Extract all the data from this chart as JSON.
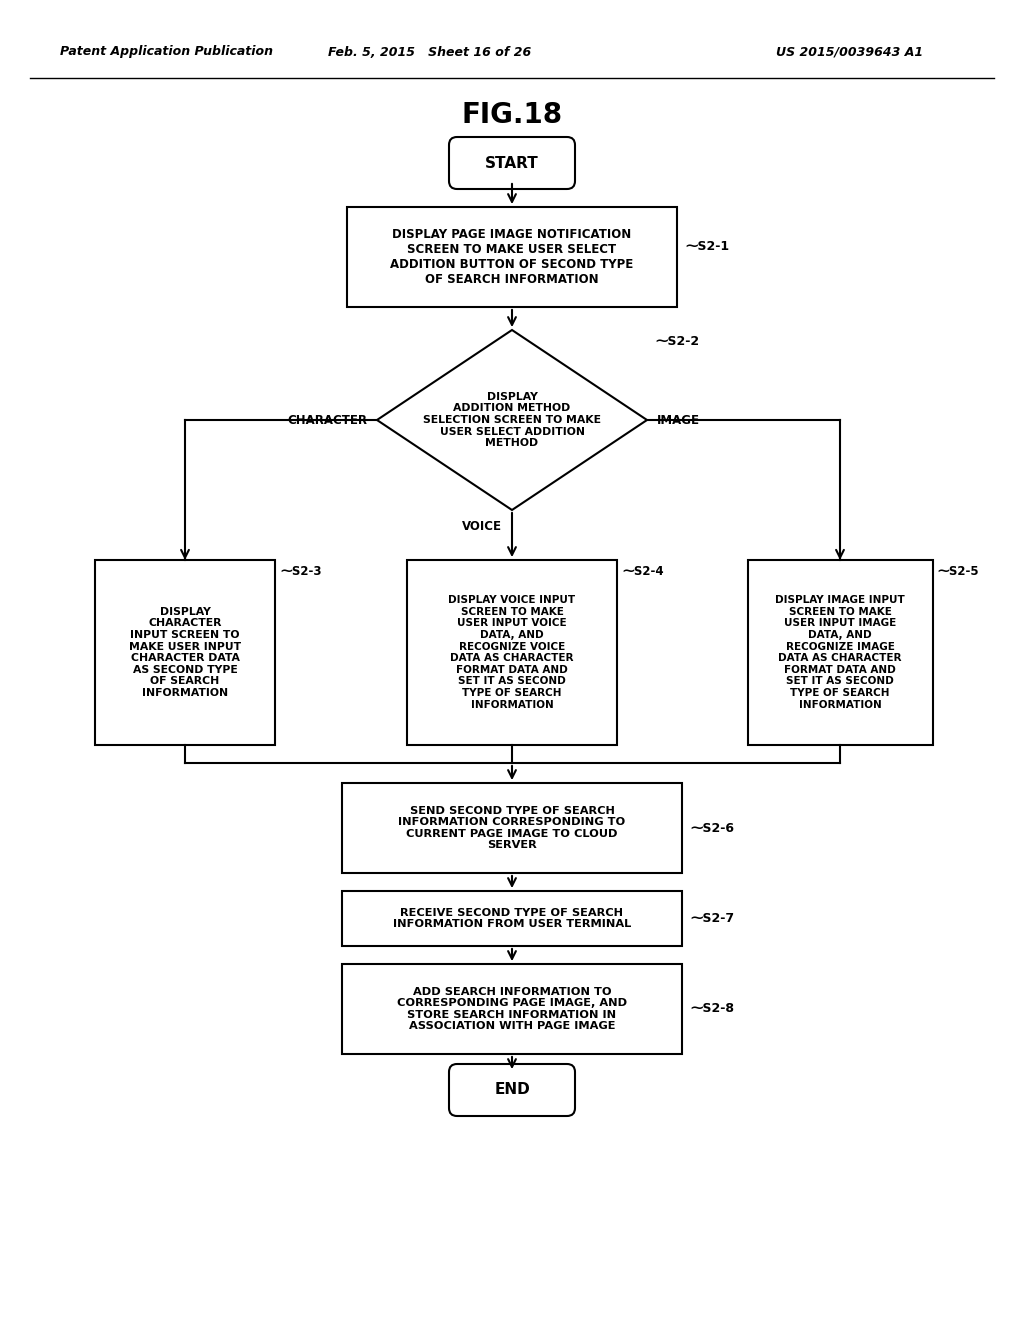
{
  "title": "FIG.18",
  "header_left": "Patent Application Publication",
  "header_mid": "Feb. 5, 2015   Sheet 16 of 26",
  "header_right": "US 2015/0039643 A1",
  "background_color": "#ffffff",
  "s21_text": "DISPLAY PAGE IMAGE NOTIFICATION\nSCREEN TO MAKE USER SELECT\nADDITION BUTTON OF SECOND TYPE\nOF SEARCH INFORMATION",
  "s21_tag": "⁓S2-1",
  "s22_text": "DISPLAY\nADDITION METHOD\nSELECTION SCREEN TO MAKE\nUSER SELECT ADDITION\nMETHOD",
  "s22_tag": "⁓S2-2",
  "s23_text": "DISPLAY\nCHARACTER\nINPUT SCREEN TO\nMAKE USER INPUT\nCHARACTER DATA\nAS SECOND TYPE\nOF SEARCH\nINFORMATION",
  "s23_tag": "⁓S2-3",
  "s24_text": "DISPLAY VOICE INPUT\nSCREEN TO MAKE\nUSER INPUT VOICE\nDATA, AND\nRECOGNIZE VOICE\nDATA AS CHARACTER\nFORMAT DATA AND\nSET IT AS SECOND\nTYPE OF SEARCH\nINFORMATION",
  "s24_tag": "⁓S2-4",
  "s25_text": "DISPLAY IMAGE INPUT\nSCREEN TO MAKE\nUSER INPUT IMAGE\nDATA, AND\nRECOGNIZE IMAGE\nDATA AS CHARACTER\nFORMAT DATA AND\nSET IT AS SECOND\nTYPE OF SEARCH\nINFORMATION",
  "s25_tag": "⁓S2-5",
  "s26_text": "SEND SECOND TYPE OF SEARCH\nINFORMATION CORRESPONDING TO\nCURRENT PAGE IMAGE TO CLOUD\nSERVER",
  "s26_tag": "⁓S2-6",
  "s27_text": "RECEIVE SECOND TYPE OF SEARCH\nINFORMATION FROM USER TERMINAL",
  "s27_tag": "⁓S2-7",
  "s28_text": "ADD SEARCH INFORMATION TO\nCORRESPONDING PAGE IMAGE, AND\nSTORE SEARCH INFORMATION IN\nASSOCIATION WITH PAGE IMAGE",
  "s28_tag": "⁓S2-8",
  "char_label": "CHARACTER",
  "voice_label": "VOICE",
  "image_label": "IMAGE",
  "start_label": "START",
  "end_label": "END"
}
